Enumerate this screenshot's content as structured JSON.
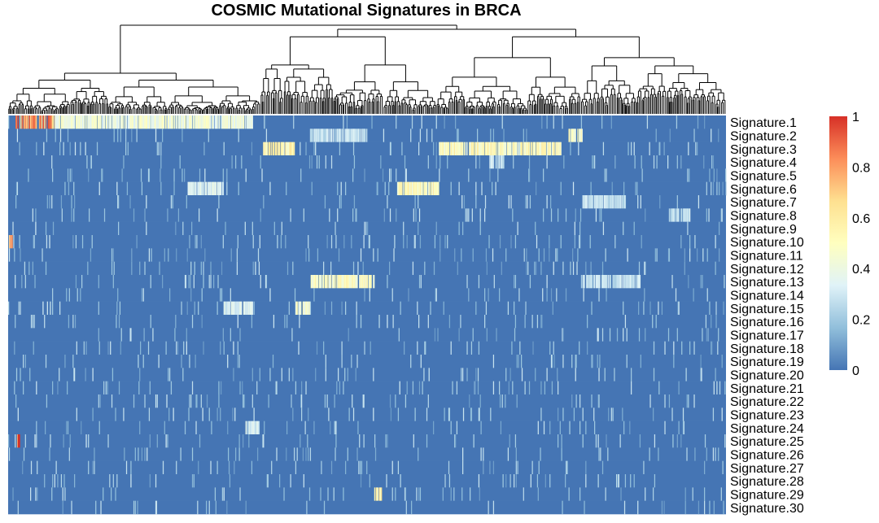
{
  "chart_data": {
    "type": "heatmap",
    "title": "COSMIC Mutational Signatures in BRCA",
    "rows": [
      "Signature.1",
      "Signature.2",
      "Signature.3",
      "Signature.4",
      "Signature.5",
      "Signature.6",
      "Signature.7",
      "Signature.8",
      "Signature.9",
      "Signature.10",
      "Signature.11",
      "Signature.12",
      "Signature.13",
      "Signature.14",
      "Signature.15",
      "Signature.16",
      "Signature.17",
      "Signature.18",
      "Signature.19",
      "Signature.20",
      "Signature.21",
      "Signature.22",
      "Signature.23",
      "Signature.24",
      "Signature.25",
      "Signature.26",
      "Signature.27",
      "Signature.28",
      "Signature.29",
      "Signature.30"
    ],
    "column_dendrogram": true,
    "color_scale": {
      "min": 0,
      "max": 1,
      "stops": [
        "#4575b4",
        "#91bfdb",
        "#e0f3f8",
        "#ffffbf",
        "#fee090",
        "#fc8d59",
        "#d73027"
      ],
      "legend_ticks": [
        "0",
        "0.2",
        "0.4",
        "0.6",
        "0.8",
        "1"
      ]
    },
    "highlight_blocks": [
      {
        "row": "Signature.1",
        "col_range": [
          0.01,
          0.065
        ],
        "value": 0.85
      },
      {
        "row": "Signature.1",
        "col_range": [
          0.065,
          0.34
        ],
        "value": 0.45
      },
      {
        "row": "Signature.2",
        "col_range": [
          0.42,
          0.5
        ],
        "value": 0.3
      },
      {
        "row": "Signature.2",
        "col_range": [
          0.78,
          0.8
        ],
        "value": 0.5
      },
      {
        "row": "Signature.3",
        "col_range": [
          0.355,
          0.4
        ],
        "value": 0.6
      },
      {
        "row": "Signature.3",
        "col_range": [
          0.6,
          0.77
        ],
        "value": 0.55
      },
      {
        "row": "Signature.6",
        "col_range": [
          0.54,
          0.6
        ],
        "value": 0.55
      },
      {
        "row": "Signature.6",
        "col_range": [
          0.25,
          0.3
        ],
        "value": 0.35
      },
      {
        "row": "Signature.13",
        "col_range": [
          0.42,
          0.51
        ],
        "value": 0.5
      },
      {
        "row": "Signature.13",
        "col_range": [
          0.8,
          0.88
        ],
        "value": 0.3
      },
      {
        "row": "Signature.15",
        "col_range": [
          0.3,
          0.34
        ],
        "value": 0.35
      },
      {
        "row": "Signature.15",
        "col_range": [
          0.4,
          0.42
        ],
        "value": 0.5
      },
      {
        "row": "Signature.7",
        "col_range": [
          0.8,
          0.86
        ],
        "value": 0.3
      },
      {
        "row": "Signature.8",
        "col_range": [
          0.92,
          0.95
        ],
        "value": 0.3
      },
      {
        "row": "Signature.4",
        "col_range": [
          0.67,
          0.69
        ],
        "value": 0.3
      },
      {
        "row": "Signature.24",
        "col_range": [
          0.33,
          0.35
        ],
        "value": 0.35
      },
      {
        "row": "Signature.29",
        "col_range": [
          0.51,
          0.52
        ],
        "value": 0.6
      },
      {
        "row": "Signature.10",
        "col_range": [
          0.0,
          0.006
        ],
        "value": 0.8
      },
      {
        "row": "Signature.25",
        "col_range": [
          0.012,
          0.016
        ],
        "value": 0.95
      }
    ]
  }
}
